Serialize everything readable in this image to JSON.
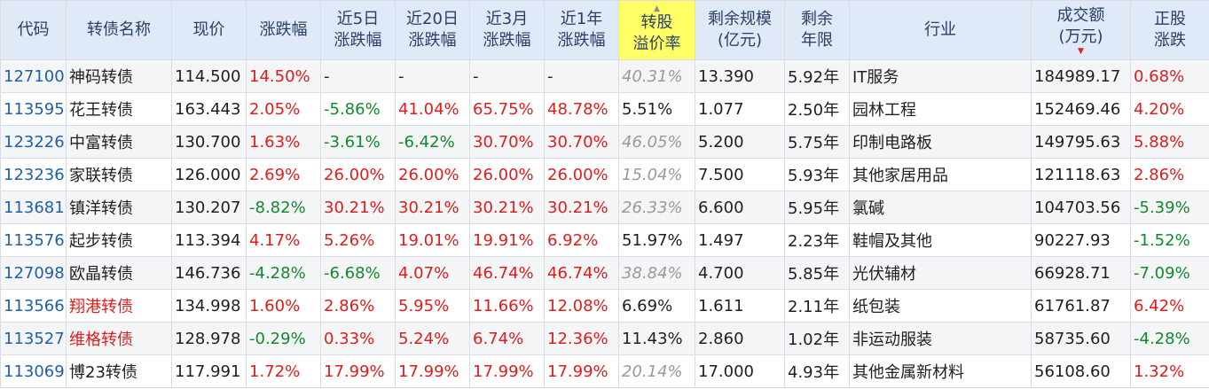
{
  "headers": [
    {
      "key": "code",
      "line1": "代码",
      "line2": ""
    },
    {
      "key": "name",
      "line1": "转债名称",
      "line2": ""
    },
    {
      "key": "price",
      "line1": "现价",
      "line2": ""
    },
    {
      "key": "change",
      "line1": "涨跌幅",
      "line2": ""
    },
    {
      "key": "chg5d",
      "line1": "近5日",
      "line2": "涨跌幅"
    },
    {
      "key": "chg20d",
      "line1": "近20日",
      "line2": "涨跌幅"
    },
    {
      "key": "chg3m",
      "line1": "近3月",
      "line2": "涨跌幅"
    },
    {
      "key": "chg1y",
      "line1": "近1年",
      "line2": "涨跌幅"
    },
    {
      "key": "premium",
      "line1": "转股",
      "line2": "溢价率"
    },
    {
      "key": "scale",
      "line1": "剩余规模",
      "line2": "(亿元)"
    },
    {
      "key": "years",
      "line1": "剩余",
      "line2": "年限"
    },
    {
      "key": "industry",
      "line1": "行业",
      "line2": ""
    },
    {
      "key": "volume",
      "line1": "成交额",
      "line2": "(万元)"
    },
    {
      "key": "stock_change",
      "line1": "正股",
      "line2": "涨跌"
    }
  ],
  "rows": [
    {
      "code": "127100",
      "name": "神码转债",
      "price": "114.500",
      "change": "14.50%",
      "chg5d": "-",
      "chg20d": "-",
      "chg3m": "-",
      "chg1y": "-",
      "premium": "40.31%",
      "scale": "13.390",
      "years": "5.92年",
      "industry": "IT服务",
      "volume": "184989.17",
      "stock_change": "0.68%"
    },
    {
      "code": "113595",
      "name": "花王转债",
      "price": "163.443",
      "change": "2.05%",
      "chg5d": "-5.86%",
      "chg20d": "41.04%",
      "chg3m": "65.75%",
      "chg1y": "48.78%",
      "premium": "5.51%",
      "scale": "1.077",
      "years": "2.50年",
      "industry": "园林工程",
      "volume": "152469.46",
      "stock_change": "4.20%"
    },
    {
      "code": "123226",
      "name": "中富转债",
      "price": "130.700",
      "change": "1.63%",
      "chg5d": "-3.61%",
      "chg20d": "-6.42%",
      "chg3m": "30.70%",
      "chg1y": "30.70%",
      "premium": "46.05%",
      "scale": "5.200",
      "years": "5.75年",
      "industry": "印制电路板",
      "volume": "149795.63",
      "stock_change": "5.88%"
    },
    {
      "code": "123236",
      "name": "家联转债",
      "price": "126.000",
      "change": "2.69%",
      "chg5d": "26.00%",
      "chg20d": "26.00%",
      "chg3m": "26.00%",
      "chg1y": "26.00%",
      "premium": "15.04%",
      "scale": "7.500",
      "years": "5.93年",
      "industry": "其他家居用品",
      "volume": "121118.63",
      "stock_change": "2.86%"
    },
    {
      "code": "113681",
      "name": "镇洋转债",
      "price": "130.207",
      "change": "-8.82%",
      "chg5d": "30.21%",
      "chg20d": "30.21%",
      "chg3m": "30.21%",
      "chg1y": "30.21%",
      "premium": "26.33%",
      "scale": "6.600",
      "years": "5.95年",
      "industry": "氯碱",
      "volume": "104703.56",
      "stock_change": "-5.39%"
    },
    {
      "code": "113576",
      "name": "起步转债",
      "price": "113.394",
      "change": "4.17%",
      "chg5d": "5.26%",
      "chg20d": "19.01%",
      "chg3m": "19.91%",
      "chg1y": "6.92%",
      "premium": "51.97%",
      "scale": "1.497",
      "years": "2.23年",
      "industry": "鞋帽及其他",
      "volume": "90227.93",
      "stock_change": "-1.52%"
    },
    {
      "code": "127098",
      "name": "欧晶转债",
      "price": "146.736",
      "change": "-4.28%",
      "chg5d": "-6.68%",
      "chg20d": "4.07%",
      "chg3m": "46.74%",
      "chg1y": "46.74%",
      "premium": "38.84%",
      "scale": "4.700",
      "years": "5.85年",
      "industry": "光伏辅材",
      "volume": "66928.71",
      "stock_change": "-7.09%"
    },
    {
      "code": "113566",
      "name": "翔港转债",
      "price": "134.998",
      "change": "1.60%",
      "chg5d": "2.86%",
      "chg20d": "5.95%",
      "chg3m": "11.66%",
      "chg1y": "12.08%",
      "premium": "6.69%",
      "scale": "1.611",
      "years": "2.11年",
      "industry": "纸包装",
      "volume": "61761.87",
      "stock_change": "6.42%"
    },
    {
      "code": "113527",
      "name": "维格转债",
      "price": "128.978",
      "change": "-0.29%",
      "chg5d": "0.33%",
      "chg20d": "5.24%",
      "chg3m": "6.74%",
      "chg1y": "12.36%",
      "premium": "11.43%",
      "scale": "2.860",
      "years": "1.02年",
      "industry": "非运动服装",
      "volume": "58735.60",
      "stock_change": "-4.28%"
    },
    {
      "code": "113069",
      "name": "博23转债",
      "price": "117.991",
      "change": "1.72%",
      "chg5d": "17.99%",
      "chg20d": "17.99%",
      "chg3m": "17.99%",
      "chg1y": "17.99%",
      "premium": "20.14%",
      "scale": "17.000",
      "years": "4.93年",
      "industry": "其他金属新材料",
      "volume": "56108.60",
      "stock_change": "1.32%"
    }
  ],
  "row_styles": [
    {
      "premium": "grey",
      "name": "normal"
    },
    {
      "premium": "normal",
      "name": "normal"
    },
    {
      "premium": "grey",
      "name": "normal"
    },
    {
      "premium": "grey",
      "name": "normal"
    },
    {
      "premium": "grey",
      "name": "normal"
    },
    {
      "premium": "normal",
      "name": "normal"
    },
    {
      "premium": "grey",
      "name": "normal"
    },
    {
      "premium": "normal",
      "name": "red"
    },
    {
      "premium": "normal",
      "name": "red"
    },
    {
      "premium": "grey",
      "name": "normal"
    }
  ],
  "colors": {
    "header_bg": "#dfe9f8",
    "highlight": "#ffff66",
    "up": "#e01c1c",
    "down": "#13892c",
    "code": "#2060a8"
  }
}
